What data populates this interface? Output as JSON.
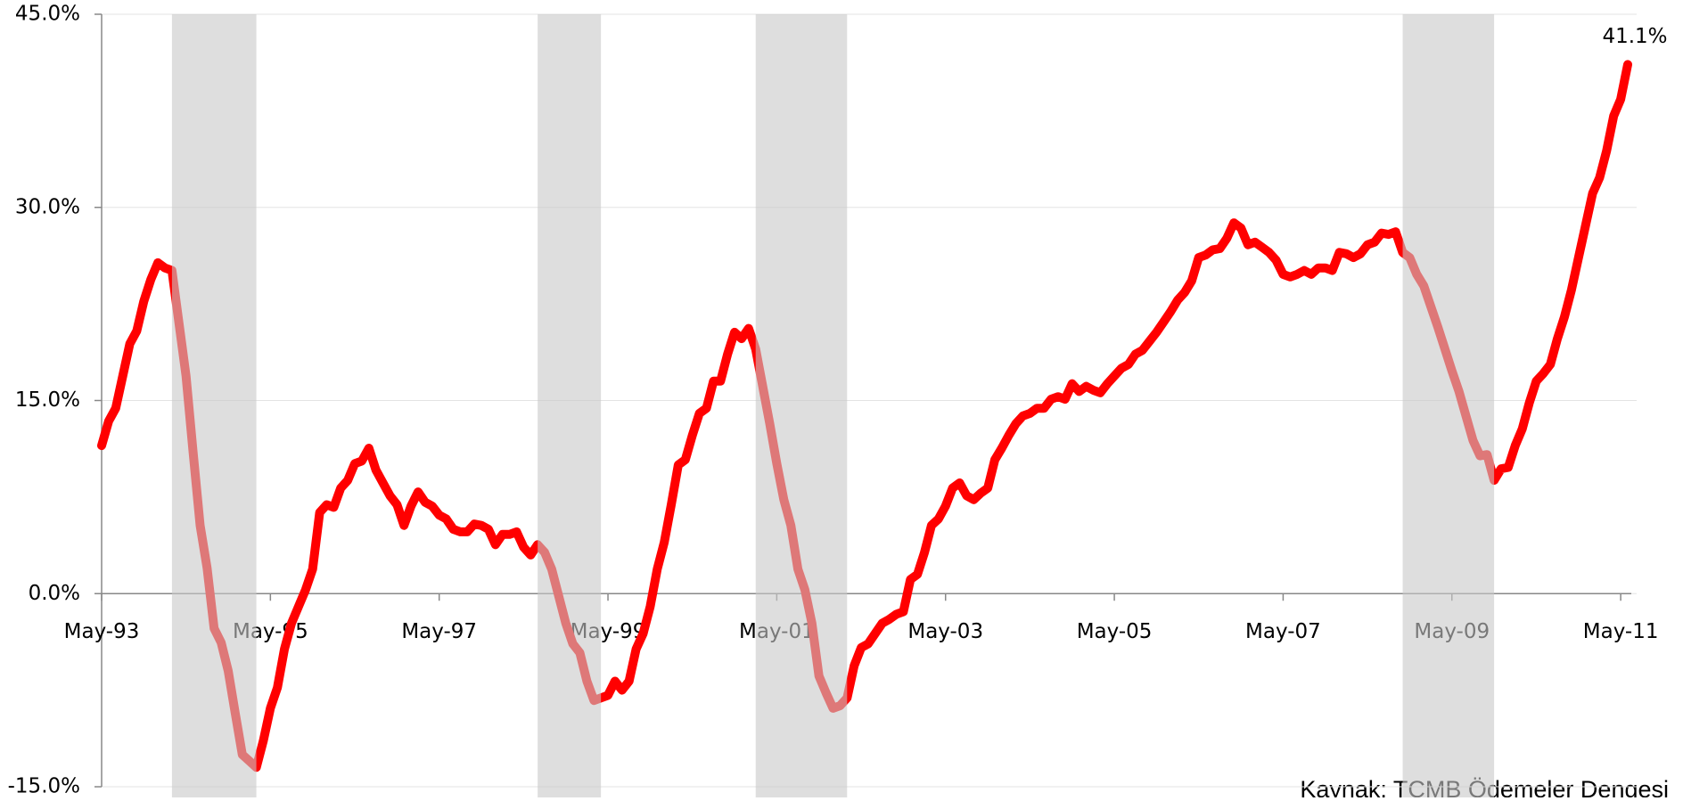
{
  "chart_data": {
    "type": "line",
    "color": "#ff0000",
    "grid": true,
    "source": "Kaynak: TCMB Ödemeler Dengesi",
    "value_label_last": "41.1%",
    "ylim": [
      -15,
      45
    ],
    "yticks": [
      {
        "value": -15,
        "label": "-15.0%"
      },
      {
        "value": 0,
        "label": "0.0%"
      },
      {
        "value": 15,
        "label": "15.0%"
      },
      {
        "value": 30,
        "label": "30.0%"
      },
      {
        "value": 45,
        "label": "45.0%"
      }
    ],
    "xticks": [
      {
        "value": "1993-05",
        "label": "May-93"
      },
      {
        "value": "1995-05",
        "label": "May-95"
      },
      {
        "value": "1997-05",
        "label": "May-97"
      },
      {
        "value": "1999-05",
        "label": "May-99"
      },
      {
        "value": "2001-05",
        "label": "May-01"
      },
      {
        "value": "2003-05",
        "label": "May-03"
      },
      {
        "value": "2005-05",
        "label": "May-05"
      },
      {
        "value": "2007-05",
        "label": "May-07"
      },
      {
        "value": "2009-05",
        "label": "May-09"
      },
      {
        "value": "2011-05",
        "label": "May-11"
      }
    ],
    "shaded_periods": [
      [
        "1994-03",
        "1995-03"
      ],
      [
        "1998-07",
        "1999-04"
      ],
      [
        "2001-02",
        "2002-03"
      ],
      [
        "2008-10",
        "2009-11"
      ]
    ],
    "x": [
      "1993-05",
      "1993-06",
      "1993-07",
      "1993-08",
      "1993-09",
      "1993-10",
      "1993-11",
      "1993-12",
      "1994-01",
      "1994-02",
      "1994-03",
      "1994-04",
      "1994-05",
      "1994-06",
      "1994-07",
      "1994-08",
      "1994-09",
      "1994-10",
      "1994-11",
      "1994-12",
      "1995-01",
      "1995-02",
      "1995-03",
      "1995-04",
      "1995-05",
      "1995-06",
      "1995-07",
      "1995-08",
      "1995-09",
      "1995-10",
      "1995-11",
      "1995-12",
      "1996-01",
      "1996-02",
      "1996-03",
      "1996-04",
      "1996-05",
      "1996-06",
      "1996-07",
      "1996-08",
      "1996-09",
      "1996-10",
      "1996-11",
      "1996-12",
      "1997-01",
      "1997-02",
      "1997-03",
      "1997-04",
      "1997-05",
      "1997-06",
      "1997-07",
      "1997-08",
      "1997-09",
      "1997-10",
      "1997-11",
      "1997-12",
      "1998-01",
      "1998-02",
      "1998-03",
      "1998-04",
      "1998-05",
      "1998-06",
      "1998-07",
      "1998-08",
      "1998-09",
      "1998-10",
      "1998-11",
      "1998-12",
      "1999-01",
      "1999-02",
      "1999-03",
      "1999-04",
      "1999-05",
      "1999-06",
      "1999-07",
      "1999-08",
      "1999-09",
      "1999-10",
      "1999-11",
      "1999-12",
      "2000-01",
      "2000-02",
      "2000-03",
      "2000-04",
      "2000-05",
      "2000-06",
      "2000-07",
      "2000-08",
      "2000-09",
      "2000-10",
      "2000-11",
      "2000-12",
      "2001-01",
      "2001-02",
      "2001-03",
      "2001-04",
      "2001-05",
      "2001-06",
      "2001-07",
      "2001-08",
      "2001-09",
      "2001-10",
      "2001-11",
      "2001-12",
      "2002-01",
      "2002-02",
      "2002-03",
      "2002-04",
      "2002-05",
      "2002-06",
      "2002-07",
      "2002-08",
      "2002-09",
      "2002-10",
      "2002-11",
      "2002-12",
      "2003-01",
      "2003-02",
      "2003-03",
      "2003-04",
      "2003-05",
      "2003-06",
      "2003-07",
      "2003-08",
      "2003-09",
      "2003-10",
      "2003-11",
      "2003-12",
      "2004-01",
      "2004-02",
      "2004-03",
      "2004-04",
      "2004-05",
      "2004-06",
      "2004-07",
      "2004-08",
      "2004-09",
      "2004-10",
      "2004-11",
      "2004-12",
      "2005-01",
      "2005-02",
      "2005-03",
      "2005-04",
      "2005-05",
      "2005-06",
      "2005-07",
      "2005-08",
      "2005-09",
      "2005-10",
      "2005-11",
      "2005-12",
      "2006-01",
      "2006-02",
      "2006-03",
      "2006-04",
      "2006-05",
      "2006-06",
      "2006-07",
      "2006-08",
      "2006-09",
      "2006-10",
      "2006-11",
      "2006-12",
      "2007-01",
      "2007-02",
      "2007-03",
      "2007-04",
      "2007-05",
      "2007-06",
      "2007-07",
      "2007-08",
      "2007-09",
      "2007-10",
      "2007-11",
      "2007-12",
      "2008-01",
      "2008-02",
      "2008-03",
      "2008-04",
      "2008-05",
      "2008-06",
      "2008-07",
      "2008-08",
      "2008-09",
      "2008-10",
      "2008-11",
      "2008-12",
      "2009-01",
      "2009-02",
      "2009-03",
      "2009-04",
      "2009-05",
      "2009-06",
      "2009-07",
      "2009-08",
      "2009-09",
      "2009-10",
      "2009-11",
      "2009-12",
      "2010-01",
      "2010-02",
      "2010-03",
      "2010-04",
      "2010-05",
      "2010-06",
      "2010-07",
      "2010-08",
      "2010-09",
      "2010-10",
      "2010-11",
      "2010-12",
      "2011-01",
      "2011-02",
      "2011-03",
      "2011-04",
      "2011-05",
      "2011-06"
    ],
    "values": [
      11.5,
      13.4,
      14.4,
      16.9,
      19.4,
      20.4,
      22.7,
      24.4,
      25.7,
      25.3,
      25.1,
      21,
      16.9,
      11,
      5.3,
      2,
      -2.7,
      -3.8,
      -6,
      -9.3,
      -12.5,
      -13,
      -13.5,
      -11.4,
      -8.9,
      -7.3,
      -4.3,
      -2.3,
      -1,
      0.3,
      1.9,
      6.3,
      6.9,
      6.7,
      8.2,
      8.8,
      10.1,
      10.3,
      11.3,
      9.6,
      8.6,
      7.6,
      6.9,
      5.3,
      6.8,
      7.9,
      7.1,
      6.8,
      6.1,
      5.8,
      5,
      4.8,
      4.8,
      5.4,
      5.3,
      5,
      3.8,
      4.6,
      4.6,
      4.8,
      3.6,
      3,
      3.8,
      3.2,
      1.9,
      -0.2,
      -2.3,
      -3.9,
      -4.6,
      -6.8,
      -8.3,
      -8.1,
      -7.9,
      -6.8,
      -7.5,
      -6.8,
      -4.3,
      -3.1,
      -1,
      1.9,
      4,
      6.9,
      10,
      10.4,
      12.3,
      14,
      14.4,
      16.5,
      16.5,
      18.6,
      20.3,
      19.8,
      20.6,
      19,
      16.1,
      13.2,
      10.1,
      7.3,
      5.3,
      1.9,
      0.3,
      -2.3,
      -6.4,
      -7.7,
      -8.9,
      -8.7,
      -8.1,
      -5.6,
      -4.2,
      -3.9,
      -3.1,
      -2.3,
      -2,
      -1.6,
      -1.4,
      1.1,
      1.5,
      3.2,
      5.3,
      5.8,
      6.8,
      8.2,
      8.6,
      7.6,
      7.3,
      7.8,
      8.2,
      10.4,
      11.3,
      12.3,
      13.2,
      13.8,
      14,
      14.4,
      14.4,
      15.1,
      15.3,
      15.1,
      16.3,
      15.7,
      16.1,
      15.8,
      15.6,
      16.3,
      16.9,
      17.5,
      17.8,
      18.6,
      18.9,
      19.6,
      20.3,
      21.1,
      21.9,
      22.8,
      23.4,
      24.3,
      26.1,
      26.3,
      26.7,
      26.8,
      27.6,
      28.8,
      28.4,
      27.1,
      27.3,
      26.9,
      26.5,
      25.9,
      24.8,
      24.6,
      24.8,
      25.1,
      24.8,
      25.3,
      25.3,
      25.1,
      26.5,
      26.4,
      26.1,
      26.4,
      27.1,
      27.3,
      28,
      27.9,
      28.1,
      26.5,
      26.1,
      24.8,
      23.9,
      22.3,
      20.7,
      19,
      17.3,
      15.7,
      13.8,
      11.9,
      10.7,
      10.8,
      8.8,
      9.7,
      9.8,
      11.5,
      12.8,
      14.8,
      16.5,
      17.1,
      17.8,
      19.8,
      21.5,
      23.6,
      26.1,
      28.6,
      31.1,
      32.3,
      34.4,
      37.1,
      38.4,
      41.1
    ]
  }
}
